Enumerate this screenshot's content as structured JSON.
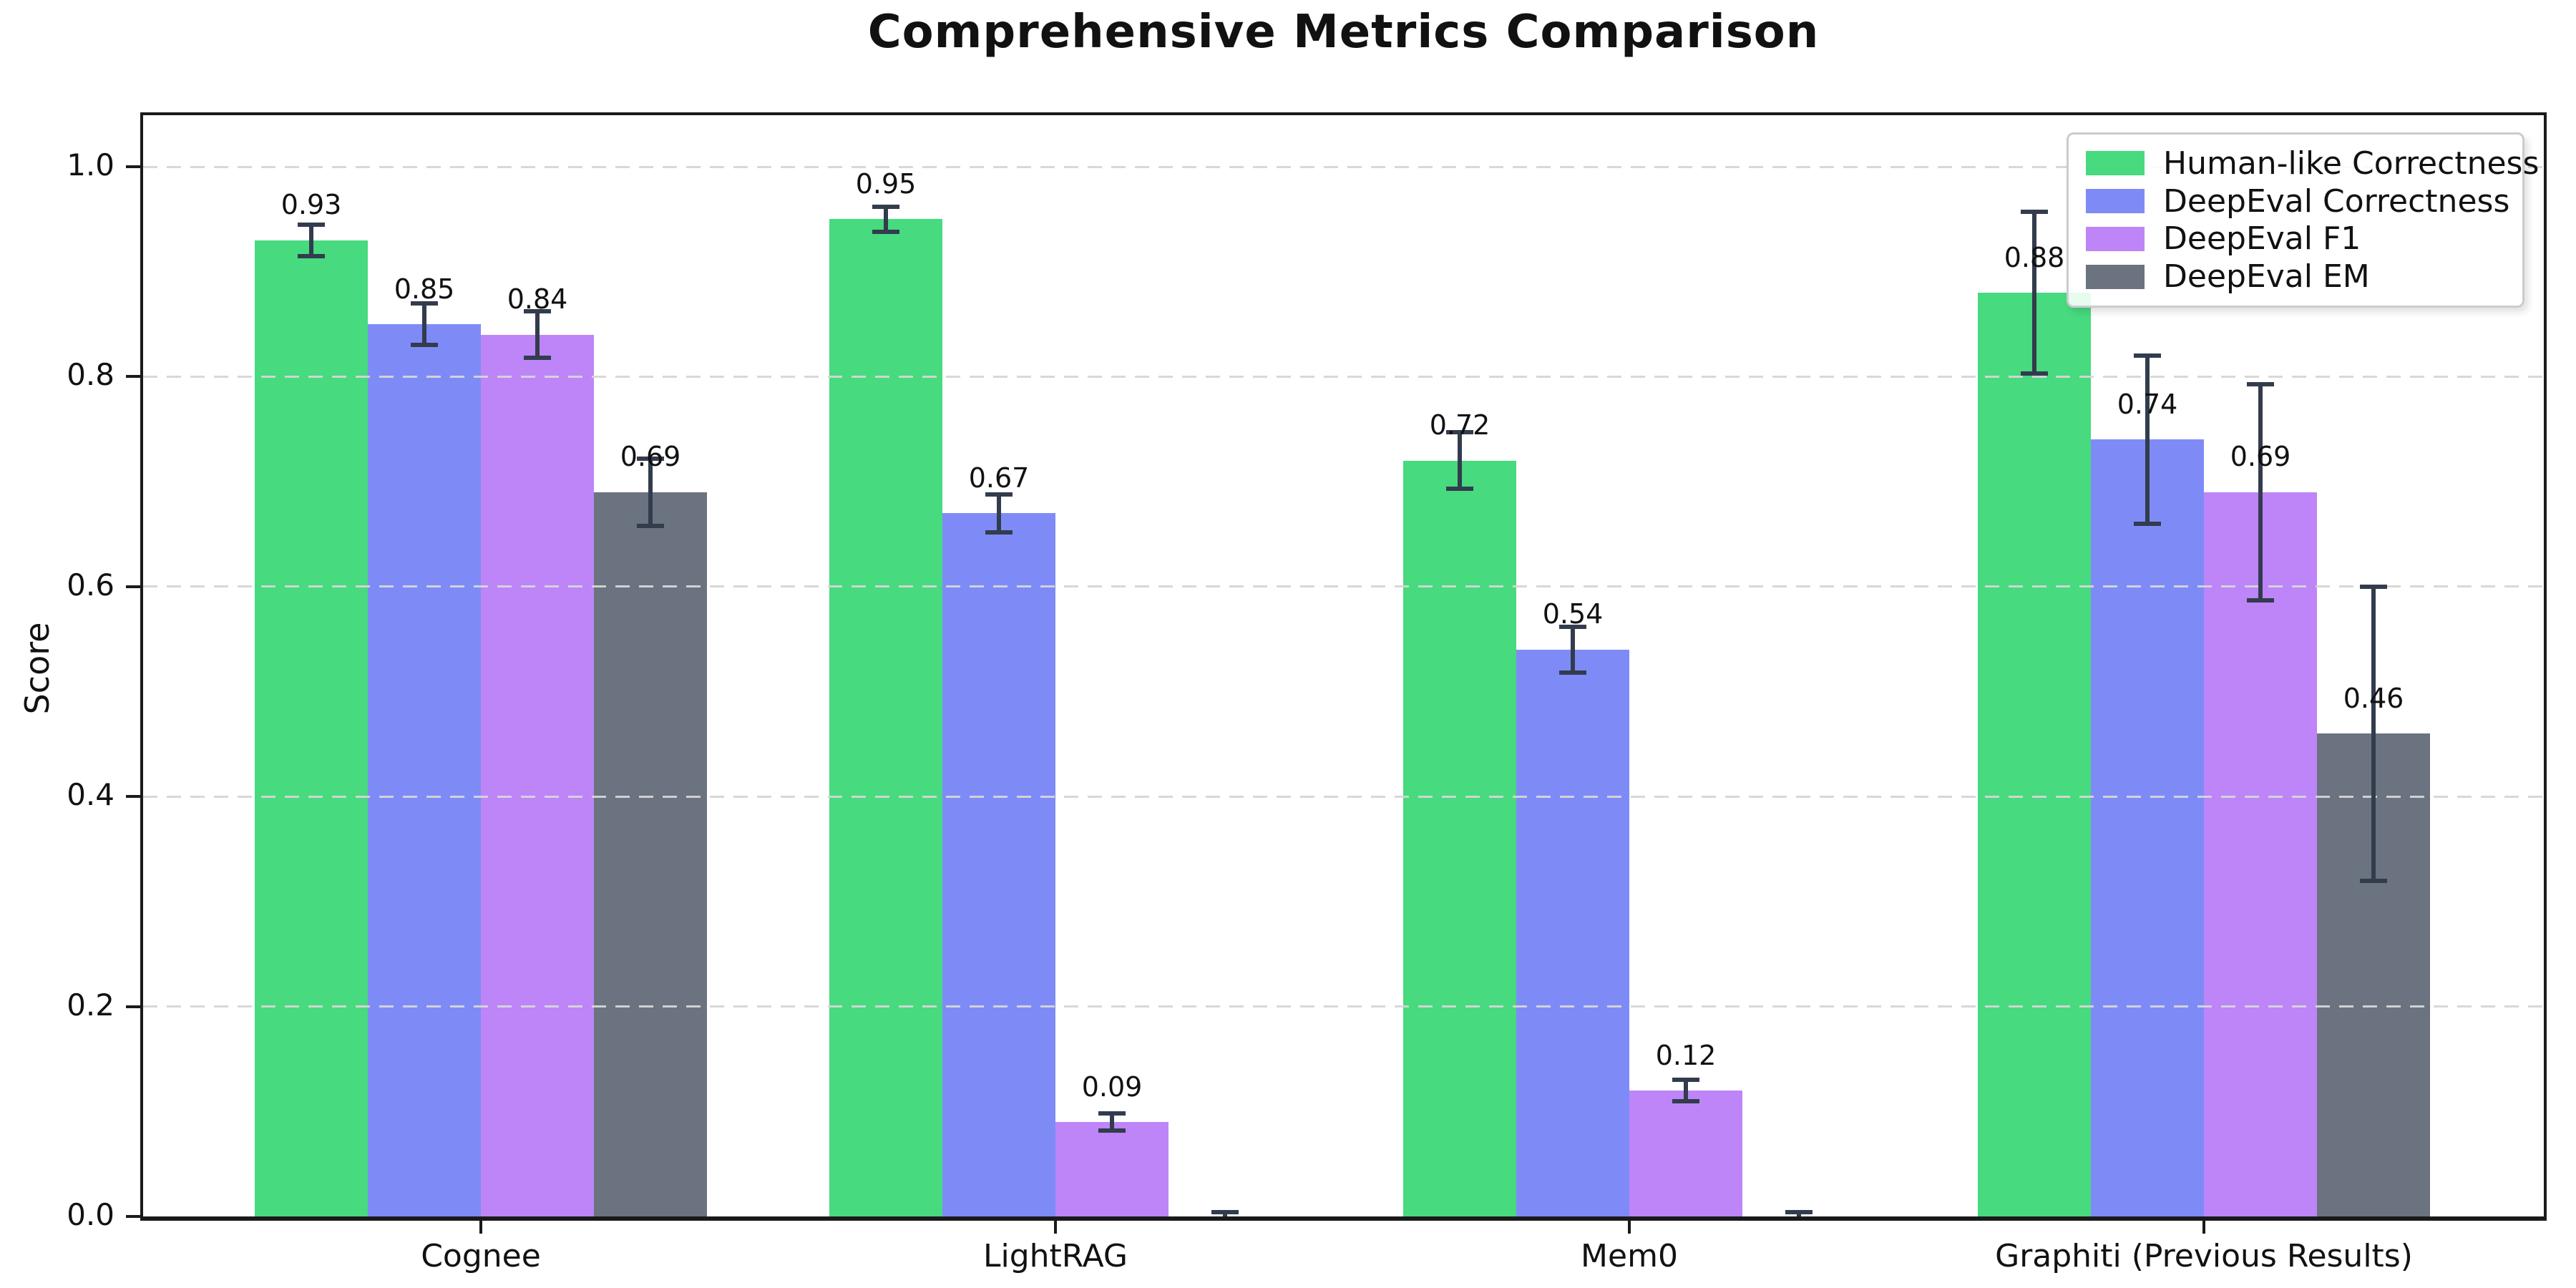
{
  "chart_data": {
    "type": "bar",
    "title": "Comprehensive Metrics Comparison",
    "ylabel": "Score",
    "xlabel": "",
    "ylim": [
      0,
      1.05
    ],
    "yticks": [
      0.0,
      0.2,
      0.4,
      0.6,
      0.8,
      1.0
    ],
    "grid": "dashed-horizontal-on-top",
    "legend_position": "upper right",
    "categories": [
      "Cognee",
      "LightRAG",
      "Mem0",
      "Graphiti (Previous Results)"
    ],
    "series": [
      {
        "name": "Human-like Correctness",
        "color": "#47da7f",
        "values": [
          0.93,
          0.95,
          0.72,
          0.88
        ],
        "errors": [
          0.015,
          0.012,
          0.027,
          0.077
        ],
        "labels": [
          "0.93",
          "0.95",
          "0.72",
          "0.88"
        ]
      },
      {
        "name": "DeepEval Correctness",
        "color": "#7e8bf7",
        "values": [
          0.85,
          0.67,
          0.54,
          0.74
        ],
        "errors": [
          0.02,
          0.018,
          0.022,
          0.08
        ],
        "labels": [
          "0.85",
          "0.67",
          "0.54",
          "0.74"
        ]
      },
      {
        "name": "DeepEval F1",
        "color": "#bd85f8",
        "values": [
          0.84,
          0.09,
          0.12,
          0.69
        ],
        "errors": [
          0.022,
          0.008,
          0.01,
          0.103
        ],
        "labels": [
          "0.84",
          "0.09",
          "0.12",
          "0.69"
        ]
      },
      {
        "name": "DeepEval EM",
        "color": "#6b7280",
        "values": [
          0.69,
          0.0,
          0.0,
          0.46
        ],
        "errors": [
          0.032,
          0.004,
          0.004,
          0.14
        ],
        "labels": [
          "0.69",
          null,
          null,
          "0.46"
        ]
      }
    ],
    "error_bar_color": "#323c4d",
    "grid_color": "#d6d6d6",
    "text_color": "#111111",
    "background_color": "#ffffff"
  }
}
